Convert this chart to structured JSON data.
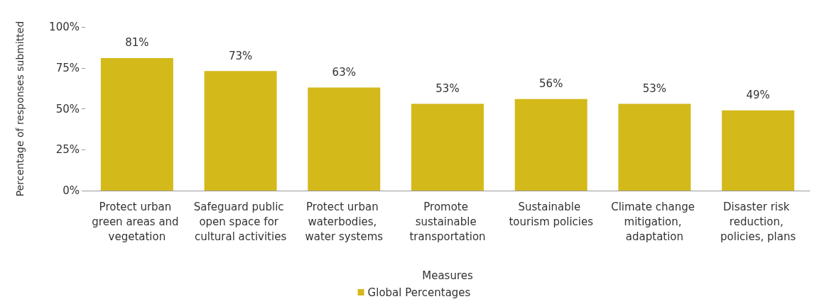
{
  "chart_data": {
    "type": "bar",
    "categories": [
      "Protect urban green areas and vegetation",
      "Safeguard public open space for cultural activities",
      "Protect urban waterbodies, water systems",
      "Promote sustainable transportation",
      "Sustainable tourism policies",
      "Climate change mitigation, adaptation",
      "Disaster risk reduction, policies, plans"
    ],
    "series": [
      {
        "name": "Global Percentages",
        "color": "#d4b91a",
        "values": [
          81,
          73,
          63,
          53,
          56,
          53,
          49
        ],
        "value_labels": [
          "81%",
          "73%",
          "63%",
          "53%",
          "56%",
          "53%",
          "49%"
        ]
      }
    ],
    "xlabel": "Measures",
    "ylabel": "Percentage of responses submitted",
    "ylim": [
      0,
      100
    ],
    "yticks": [
      {
        "value": 0,
        "label": "0%"
      },
      {
        "value": 25,
        "label": "25%"
      },
      {
        "value": 50,
        "label": "50%"
      },
      {
        "value": 75,
        "label": "75%"
      },
      {
        "value": 100,
        "label": "100%"
      }
    ],
    "grid": false,
    "legend": "bottom"
  }
}
